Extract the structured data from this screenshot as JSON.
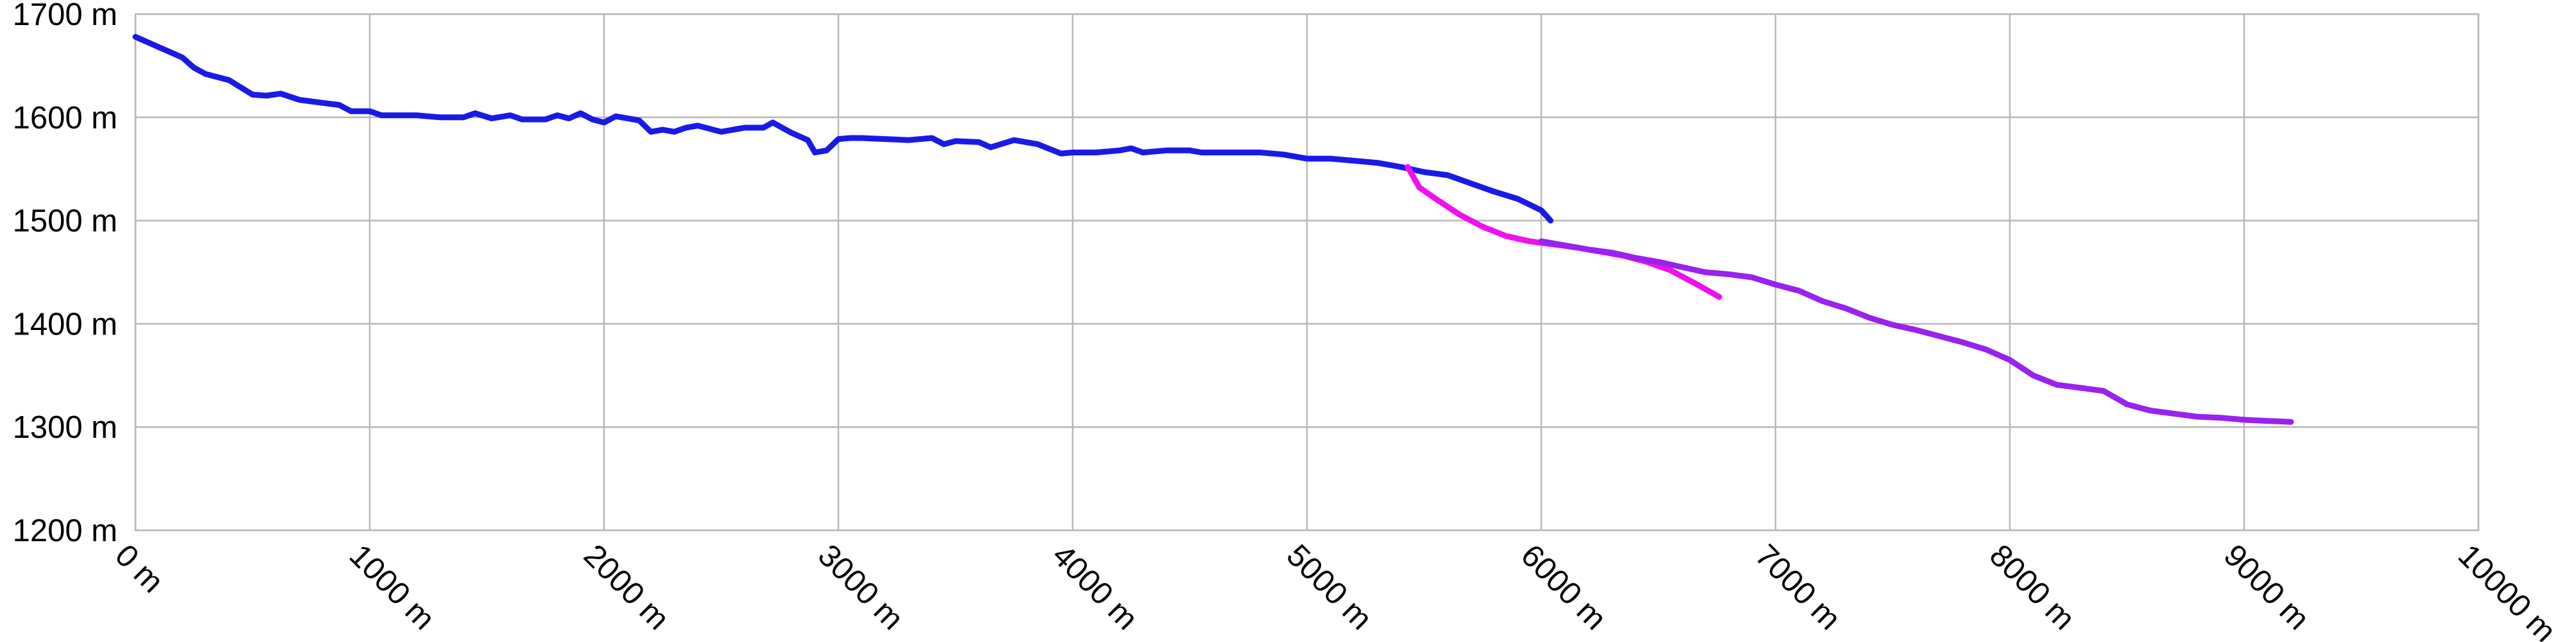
{
  "chart_data": {
    "type": "line",
    "title": "",
    "xlabel": "",
    "ylabel": "",
    "xlim": [
      0,
      10000
    ],
    "ylim": [
      1200,
      1700
    ],
    "grid": true,
    "legend": "none",
    "x_ticks": [
      0,
      1000,
      2000,
      3000,
      4000,
      5000,
      6000,
      7000,
      8000,
      9000,
      10000
    ],
    "x_tick_labels": [
      "0 m",
      "1000 m",
      "2000 m",
      "3000 m",
      "4000 m",
      "5000 m",
      "6000 m",
      "7000 m",
      "8000 m",
      "9000 m",
      "10000 m"
    ],
    "y_ticks": [
      1200,
      1300,
      1400,
      1500,
      1600,
      1700
    ],
    "y_tick_labels": [
      "1200 m",
      "1300 m",
      "1400 m",
      "1500 m",
      "1600 m",
      "1700 m"
    ],
    "series": [
      {
        "color": "#1a1ae6",
        "points": [
          [
            0,
            1678
          ],
          [
            60,
            1672
          ],
          [
            100,
            1668
          ],
          [
            200,
            1658
          ],
          [
            250,
            1648
          ],
          [
            300,
            1642
          ],
          [
            400,
            1636
          ],
          [
            500,
            1622
          ],
          [
            560,
            1621
          ],
          [
            620,
            1623
          ],
          [
            700,
            1617
          ],
          [
            800,
            1614
          ],
          [
            870,
            1612
          ],
          [
            920,
            1606
          ],
          [
            1000,
            1606
          ],
          [
            1050,
            1602
          ],
          [
            1200,
            1602
          ],
          [
            1300,
            1600
          ],
          [
            1400,
            1600
          ],
          [
            1450,
            1604
          ],
          [
            1520,
            1599
          ],
          [
            1600,
            1602
          ],
          [
            1650,
            1598
          ],
          [
            1750,
            1598
          ],
          [
            1800,
            1602
          ],
          [
            1850,
            1599
          ],
          [
            1900,
            1604
          ],
          [
            1950,
            1598
          ],
          [
            2000,
            1595
          ],
          [
            2050,
            1601
          ],
          [
            2150,
            1597
          ],
          [
            2200,
            1586
          ],
          [
            2250,
            1588
          ],
          [
            2300,
            1586
          ],
          [
            2350,
            1590
          ],
          [
            2400,
            1592
          ],
          [
            2500,
            1586
          ],
          [
            2600,
            1590
          ],
          [
            2680,
            1590
          ],
          [
            2720,
            1595
          ],
          [
            2800,
            1585
          ],
          [
            2870,
            1578
          ],
          [
            2900,
            1566
          ],
          [
            2950,
            1568
          ],
          [
            3000,
            1579
          ],
          [
            3050,
            1580
          ],
          [
            3100,
            1580
          ],
          [
            3200,
            1579
          ],
          [
            3300,
            1578
          ],
          [
            3400,
            1580
          ],
          [
            3450,
            1574
          ],
          [
            3500,
            1577
          ],
          [
            3600,
            1576
          ],
          [
            3650,
            1571
          ],
          [
            3750,
            1578
          ],
          [
            3850,
            1574
          ],
          [
            3950,
            1565
          ],
          [
            4000,
            1566
          ],
          [
            4100,
            1566
          ],
          [
            4200,
            1568
          ],
          [
            4250,
            1570
          ],
          [
            4300,
            1566
          ],
          [
            4400,
            1568
          ],
          [
            4500,
            1568
          ],
          [
            4550,
            1566
          ],
          [
            4700,
            1566
          ],
          [
            4800,
            1566
          ],
          [
            4900,
            1564
          ],
          [
            5000,
            1560
          ],
          [
            5100,
            1560
          ],
          [
            5200,
            1558
          ],
          [
            5300,
            1556
          ],
          [
            5400,
            1552
          ],
          [
            5500,
            1547
          ],
          [
            5600,
            1544
          ],
          [
            5700,
            1536
          ],
          [
            5800,
            1528
          ],
          [
            5900,
            1521
          ],
          [
            6000,
            1510
          ],
          [
            6040,
            1500
          ]
        ]
      },
      {
        "color": "#ee11ee",
        "points": [
          [
            5430,
            1552
          ],
          [
            5480,
            1532
          ],
          [
            5550,
            1521
          ],
          [
            5650,
            1506
          ],
          [
            5750,
            1494
          ],
          [
            5850,
            1485
          ],
          [
            5950,
            1480
          ],
          [
            6050,
            1477
          ],
          [
            6150,
            1474
          ],
          [
            6250,
            1470
          ],
          [
            6350,
            1466
          ],
          [
            6450,
            1460
          ],
          [
            6550,
            1452
          ],
          [
            6650,
            1440
          ],
          [
            6760,
            1426
          ]
        ]
      },
      {
        "color": "#9922ee",
        "points": [
          [
            6000,
            1480
          ],
          [
            6100,
            1476
          ],
          [
            6200,
            1472
          ],
          [
            6300,
            1469
          ],
          [
            6400,
            1464
          ],
          [
            6500,
            1460
          ],
          [
            6600,
            1455
          ],
          [
            6700,
            1450
          ],
          [
            6800,
            1448
          ],
          [
            6900,
            1445
          ],
          [
            7000,
            1438
          ],
          [
            7100,
            1432
          ],
          [
            7200,
            1422
          ],
          [
            7300,
            1415
          ],
          [
            7400,
            1406
          ],
          [
            7500,
            1399
          ],
          [
            7600,
            1394
          ],
          [
            7700,
            1388
          ],
          [
            7800,
            1382
          ],
          [
            7900,
            1375
          ],
          [
            8000,
            1365
          ],
          [
            8100,
            1350
          ],
          [
            8200,
            1341
          ],
          [
            8300,
            1338
          ],
          [
            8400,
            1335
          ],
          [
            8500,
            1322
          ],
          [
            8600,
            1316
          ],
          [
            8700,
            1313
          ],
          [
            8800,
            1310
          ],
          [
            8900,
            1309
          ],
          [
            9000,
            1307
          ],
          [
            9100,
            1306
          ],
          [
            9200,
            1305
          ]
        ]
      }
    ]
  }
}
